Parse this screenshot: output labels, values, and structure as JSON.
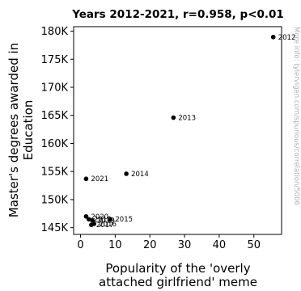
{
  "chart_data": {
    "type": "scatter",
    "title": "Years 2012-2021, r=0.958, p<0.01",
    "xlabel_lines": [
      "Popularity of the 'overly",
      "attached girlfriend' meme"
    ],
    "ylabel_lines": [
      "Master's degrees awarded in",
      "Education"
    ],
    "watermark": "More info: tylervigen.com/spurious/correlation/5006",
    "xlim": [
      -2,
      58
    ],
    "ylim": [
      143800,
      180800
    ],
    "x_ticks": [
      0,
      10,
      20,
      30,
      40,
      50
    ],
    "x_tick_labels": [
      "0",
      "10",
      "20",
      "30",
      "40",
      "50"
    ],
    "y_ticks": [
      145000,
      150000,
      155000,
      160000,
      165000,
      170000,
      175000,
      180000
    ],
    "y_tick_labels": [
      "145K",
      "150K",
      "155K",
      "160K",
      "165K",
      "170K",
      "175K",
      "180K"
    ],
    "grid": false,
    "points": [
      {
        "label": "2012",
        "x": 55.6,
        "y": 178950
      },
      {
        "label": "2013",
        "x": 26.8,
        "y": 164600
      },
      {
        "label": "2014",
        "x": 13.2,
        "y": 154600
      },
      {
        "label": "2015",
        "x": 8.6,
        "y": 146500
      },
      {
        "label": "2016",
        "x": 3.9,
        "y": 145700
      },
      {
        "label": "2017",
        "x": 3.1,
        "y": 145500
      },
      {
        "label": "2018",
        "x": 2.4,
        "y": 146500
      },
      {
        "label": "2019",
        "x": 3.4,
        "y": 146300
      },
      {
        "label": "2020",
        "x": 1.6,
        "y": 147000
      },
      {
        "label": "2021",
        "x": 1.6,
        "y": 153700
      }
    ]
  }
}
